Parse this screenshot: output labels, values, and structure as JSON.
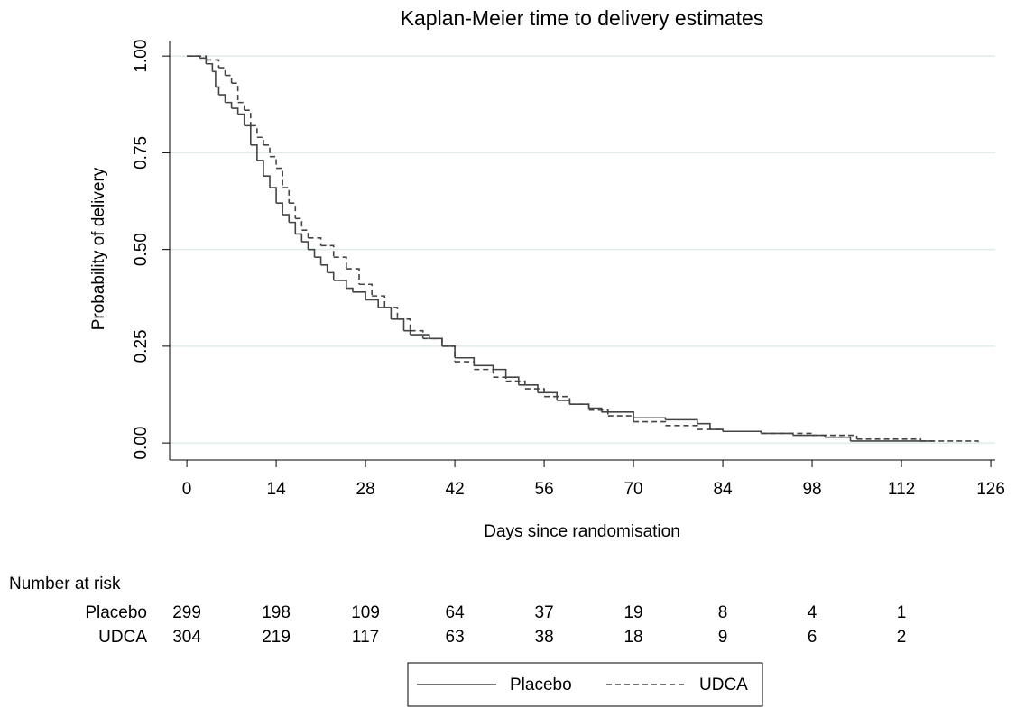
{
  "chart_data": {
    "type": "line",
    "step": "post",
    "title": "Kaplan-Meier time to delivery estimates",
    "x_label": "Days since randomisation",
    "y_label": "Probability of delivery",
    "xlim": [
      -2.7,
      126.7
    ],
    "ylim": [
      -0.044,
      1.04
    ],
    "xticks": [
      0,
      14,
      28,
      42,
      56,
      70,
      84,
      98,
      112,
      126
    ],
    "yticks": [
      {
        "value": 0,
        "label": "0.00"
      },
      {
        "value": 0.25,
        "label": "0.25"
      },
      {
        "value": 0.5,
        "label": "0.50"
      },
      {
        "value": 0.75,
        "label": "0.75"
      },
      {
        "value": 1,
        "label": "1.00"
      }
    ],
    "grid": true,
    "grid_color": "#deebeb",
    "series": [
      {
        "name": "Placebo",
        "color": "#444444",
        "dash": "solid",
        "x": [
          0,
          2,
          3,
          4,
          4.5,
          5,
          6,
          7,
          8,
          9,
          10,
          11,
          12,
          13,
          14,
          15,
          16,
          17,
          18,
          19,
          20,
          21,
          22,
          23,
          25,
          26,
          28,
          30,
          32,
          34,
          35,
          38,
          40,
          42,
          45,
          48,
          50,
          52,
          55,
          58,
          60,
          63,
          65,
          70,
          75,
          80,
          82,
          84,
          90,
          95,
          100,
          104,
          117
        ],
        "values": [
          1.0,
          0.995,
          0.98,
          0.96,
          0.92,
          0.9,
          0.88,
          0.865,
          0.85,
          0.82,
          0.77,
          0.73,
          0.69,
          0.66,
          0.62,
          0.59,
          0.57,
          0.54,
          0.52,
          0.5,
          0.48,
          0.46,
          0.44,
          0.42,
          0.4,
          0.39,
          0.37,
          0.35,
          0.32,
          0.29,
          0.28,
          0.27,
          0.25,
          0.22,
          0.2,
          0.19,
          0.17,
          0.15,
          0.13,
          0.11,
          0.1,
          0.09,
          0.08,
          0.065,
          0.06,
          0.05,
          0.035,
          0.03,
          0.025,
          0.02,
          0.015,
          0.005,
          0.005
        ]
      },
      {
        "name": "UDCA",
        "color": "#444444",
        "dash": "dashed",
        "x": [
          0,
          3,
          5,
          6,
          7,
          8,
          9,
          10,
          11,
          12,
          13,
          14,
          15,
          16,
          17,
          18,
          19,
          21,
          23,
          25,
          27,
          29,
          31,
          33,
          35,
          37,
          40,
          42,
          45,
          48,
          50,
          53,
          56,
          60,
          63,
          66,
          70,
          75,
          80,
          84,
          90,
          98,
          105,
          115,
          124
        ],
        "values": [
          1.0,
          0.99,
          0.97,
          0.95,
          0.93,
          0.88,
          0.86,
          0.82,
          0.79,
          0.77,
          0.74,
          0.71,
          0.66,
          0.62,
          0.58,
          0.55,
          0.53,
          0.51,
          0.48,
          0.45,
          0.41,
          0.38,
          0.35,
          0.32,
          0.29,
          0.27,
          0.25,
          0.21,
          0.19,
          0.17,
          0.16,
          0.14,
          0.12,
          0.1,
          0.085,
          0.07,
          0.055,
          0.045,
          0.035,
          0.03,
          0.025,
          0.02,
          0.01,
          0.005,
          0.003
        ]
      }
    ],
    "risk_table": {
      "title": "Number at risk",
      "rows": [
        {
          "name": "Placebo",
          "values": [
            299,
            198,
            109,
            64,
            37,
            19,
            8,
            4,
            1
          ]
        },
        {
          "name": "UDCA",
          "values": [
            304,
            219,
            117,
            63,
            38,
            18,
            9,
            6,
            2
          ]
        }
      ]
    }
  }
}
